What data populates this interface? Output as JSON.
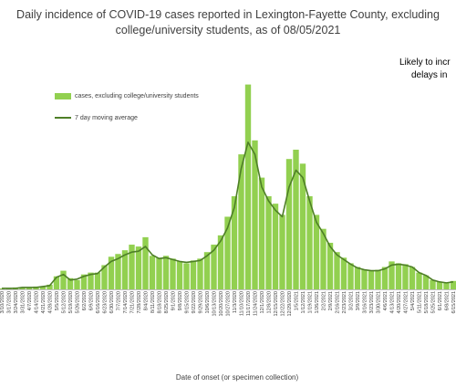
{
  "chart_data": {
    "type": "bar",
    "title_lines": [
      "Daily incidence of COVID-19 cases reported in Lexington-Fayette County, excluding",
      "college/university students, as of 08/05/2021"
    ],
    "annotation_lines": [
      "Likely to incr",
      "delays in"
    ],
    "xlabel": "Date of onset (or specimen collection)",
    "ylabel": "",
    "ylim": [
      0,
      250
    ],
    "grid": false,
    "legend_position": "top-left",
    "colors": {
      "bars": "#92d050",
      "line": "#4e7f27",
      "axis": "#bfbfbf"
    },
    "series": [
      {
        "name": "cases, excluding college/university students",
        "kind": "bar"
      },
      {
        "name": "7 day moving average",
        "kind": "line"
      }
    ],
    "weekly_points": [
      {
        "date": "3/10/2020",
        "cases": 1,
        "avg": 1
      },
      {
        "date": "3/17/2020",
        "cases": 1,
        "avg": 1
      },
      {
        "date": "3/24/2020",
        "cases": 2,
        "avg": 1
      },
      {
        "date": "3/31/2020",
        "cases": 2,
        "avg": 2
      },
      {
        "date": "4/7/2020",
        "cases": 2,
        "avg": 2
      },
      {
        "date": "4/14/2020",
        "cases": 3,
        "avg": 2
      },
      {
        "date": "4/21/2020",
        "cases": 3,
        "avg": 3
      },
      {
        "date": "4/28/2020",
        "cases": 5,
        "avg": 4
      },
      {
        "date": "5/5/2020",
        "cases": 14,
        "avg": 13
      },
      {
        "date": "5/12/2020",
        "cases": 20,
        "avg": 16
      },
      {
        "date": "5/19/2020",
        "cases": 12,
        "avg": 10
      },
      {
        "date": "5/26/2020",
        "cases": 10,
        "avg": 11
      },
      {
        "date": "6/2/2020",
        "cases": 16,
        "avg": 14
      },
      {
        "date": "6/9/2020",
        "cases": 18,
        "avg": 16
      },
      {
        "date": "6/16/2020",
        "cases": 18,
        "avg": 17
      },
      {
        "date": "6/23/2020",
        "cases": 26,
        "avg": 24
      },
      {
        "date": "6/30/2020",
        "cases": 35,
        "avg": 30
      },
      {
        "date": "7/7/2020",
        "cases": 38,
        "avg": 33
      },
      {
        "date": "7/14/2020",
        "cases": 42,
        "avg": 37
      },
      {
        "date": "7/21/2020",
        "cases": 48,
        "avg": 40
      },
      {
        "date": "7/28/2020",
        "cases": 46,
        "avg": 41
      },
      {
        "date": "8/4/2020",
        "cases": 56,
        "avg": 46
      },
      {
        "date": "8/11/2020",
        "cases": 36,
        "avg": 37
      },
      {
        "date": "8/18/2020",
        "cases": 34,
        "avg": 33
      },
      {
        "date": "8/25/2020",
        "cases": 36,
        "avg": 34
      },
      {
        "date": "9/1/2020",
        "cases": 33,
        "avg": 32
      },
      {
        "date": "9/8/2020",
        "cases": 30,
        "avg": 30
      },
      {
        "date": "9/15/2020",
        "cases": 28,
        "avg": 29
      },
      {
        "date": "9/22/2020",
        "cases": 31,
        "avg": 30
      },
      {
        "date": "9/29/2020",
        "cases": 33,
        "avg": 31
      },
      {
        "date": "10/6/2020",
        "cases": 40,
        "avg": 36
      },
      {
        "date": "10/13/2020",
        "cases": 48,
        "avg": 42
      },
      {
        "date": "10/20/2020",
        "cases": 58,
        "avg": 52
      },
      {
        "date": "10/27/2020",
        "cases": 78,
        "avg": 66
      },
      {
        "date": "11/3/2020",
        "cases": 100,
        "avg": 88
      },
      {
        "date": "11/10/2020",
        "cases": 145,
        "avg": 130
      },
      {
        "date": "11/17/2020",
        "cases": 220,
        "avg": 158
      },
      {
        "date": "11/24/2020",
        "cases": 160,
        "avg": 145
      },
      {
        "date": "12/1/2020",
        "cases": 120,
        "avg": 110
      },
      {
        "date": "12/8/2020",
        "cases": 100,
        "avg": 95
      },
      {
        "date": "12/15/2020",
        "cases": 92,
        "avg": 85
      },
      {
        "date": "12/22/2020",
        "cases": 80,
        "avg": 78
      },
      {
        "date": "12/29/2020",
        "cases": 140,
        "avg": 110
      },
      {
        "date": "1/5/2021",
        "cases": 150,
        "avg": 128
      },
      {
        "date": "1/12/2021",
        "cases": 135,
        "avg": 120
      },
      {
        "date": "1/19/2021",
        "cases": 100,
        "avg": 95
      },
      {
        "date": "1/26/2021",
        "cases": 80,
        "avg": 72
      },
      {
        "date": "2/2/2021",
        "cases": 65,
        "avg": 60
      },
      {
        "date": "2/9/2021",
        "cases": 50,
        "avg": 46
      },
      {
        "date": "2/16/2021",
        "cases": 40,
        "avg": 37
      },
      {
        "date": "2/23/2021",
        "cases": 34,
        "avg": 32
      },
      {
        "date": "3/2/2021",
        "cases": 28,
        "avg": 27
      },
      {
        "date": "3/9/2021",
        "cases": 24,
        "avg": 23
      },
      {
        "date": "3/16/2021",
        "cases": 21,
        "avg": 21
      },
      {
        "date": "3/23/2021",
        "cases": 20,
        "avg": 20
      },
      {
        "date": "3/30/2021",
        "cases": 21,
        "avg": 20
      },
      {
        "date": "4/6/2021",
        "cases": 24,
        "avg": 22
      },
      {
        "date": "4/13/2021",
        "cases": 30,
        "avg": 26
      },
      {
        "date": "4/20/2021",
        "cases": 28,
        "avg": 27
      },
      {
        "date": "4/27/2021",
        "cases": 27,
        "avg": 26
      },
      {
        "date": "5/4/2021",
        "cases": 24,
        "avg": 24
      },
      {
        "date": "5/11/2021",
        "cases": 18,
        "avg": 18
      },
      {
        "date": "5/18/2021",
        "cases": 15,
        "avg": 15
      },
      {
        "date": "5/25/2021",
        "cases": 10,
        "avg": 10
      },
      {
        "date": "6/1/2021",
        "cases": 8,
        "avg": 8
      },
      {
        "date": "6/8/2021",
        "cases": 7,
        "avg": 7
      },
      {
        "date": "6/15/2021",
        "cases": 9,
        "avg": 8
      }
    ]
  }
}
